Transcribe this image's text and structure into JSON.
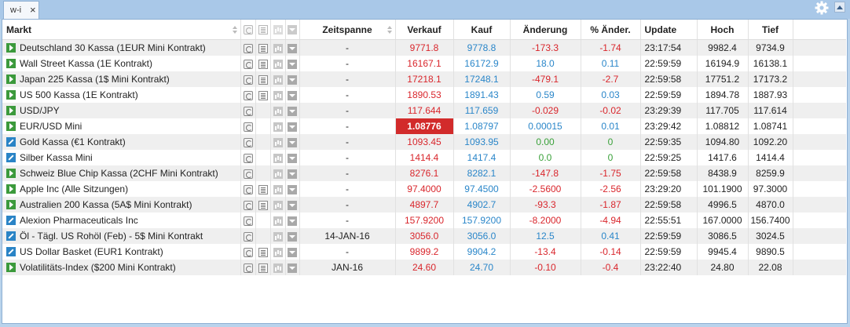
{
  "tab": {
    "label": "w-i",
    "close": "×"
  },
  "headers": {
    "markt": "Markt",
    "zeitspanne": "Zeitspanne",
    "verkauf": "Verkauf",
    "kauf": "Kauf",
    "aenderung": "Änderung",
    "pct": "% Änder.",
    "update": "Update",
    "hoch": "Hoch",
    "tief": "Tief"
  },
  "colors": {
    "sell": "#d9262c",
    "buy": "#2a86c9",
    "up": "#3aa13a",
    "highlight": "#d22b2b"
  },
  "rows": [
    {
      "icon": "play",
      "name": "Deutschland 30 Kassa (1EUR Mini Kontrakt)",
      "doc": true,
      "zeit": "-",
      "sell": "9771.8",
      "buy": "9778.8",
      "chg": "-173.3",
      "pct": "-1.74",
      "dir": "down",
      "update": "23:17:54",
      "high": "9982.4",
      "low": "9734.9"
    },
    {
      "icon": "play",
      "name": "Wall Street Kassa (1E Kontrakt)",
      "doc": true,
      "zeit": "-",
      "sell": "16167.1",
      "buy": "16172.9",
      "chg": "18.0",
      "pct": "0.11",
      "dir": "upblue",
      "update": "22:59:59",
      "high": "16194.9",
      "low": "16138.1"
    },
    {
      "icon": "play",
      "name": "Japan 225 Kassa (1$ Mini Kontrakt)",
      "doc": true,
      "zeit": "-",
      "sell": "17218.1",
      "buy": "17248.1",
      "chg": "-479.1",
      "pct": "-2.7",
      "dir": "down",
      "update": "22:59:58",
      "high": "17751.2",
      "low": "17173.2"
    },
    {
      "icon": "play",
      "name": "US 500 Kassa (1E Kontrakt)",
      "doc": true,
      "zeit": "-",
      "sell": "1890.53",
      "buy": "1891.43",
      "chg": "0.59",
      "pct": "0.03",
      "dir": "upblue",
      "update": "22:59:59",
      "high": "1894.78",
      "low": "1887.93"
    },
    {
      "icon": "play",
      "name": "USD/JPY",
      "doc": false,
      "zeit": "-",
      "sell": "117.644",
      "buy": "117.659",
      "chg": "-0.029",
      "pct": "-0.02",
      "dir": "down",
      "update": "23:29:39",
      "high": "117.705",
      "low": "117.614"
    },
    {
      "icon": "play",
      "name": "EUR/USD Mini",
      "doc": false,
      "zeit": "-",
      "sell": "1.08776",
      "buy": "1.08797",
      "chg": "0.00015",
      "pct": "0.01",
      "dir": "upblue",
      "update": "23:29:42",
      "high": "1.08812",
      "low": "1.08741",
      "hl": true
    },
    {
      "icon": "pencil",
      "name": "Gold Kassa (€1 Kontrakt)",
      "doc": false,
      "zeit": "-",
      "sell": "1093.45",
      "buy": "1093.95",
      "chg": "0.00",
      "pct": "0",
      "dir": "flat",
      "update": "22:59:35",
      "high": "1094.80",
      "low": "1092.20"
    },
    {
      "icon": "pencil",
      "name": "Silber Kassa Mini",
      "doc": false,
      "zeit": "-",
      "sell": "1414.4",
      "buy": "1417.4",
      "chg": "0.0",
      "pct": "0",
      "dir": "flat",
      "update": "22:59:25",
      "high": "1417.6",
      "low": "1414.4"
    },
    {
      "icon": "play",
      "name": "Schweiz Blue Chip Kassa (2CHF Mini Kontrakt)",
      "doc": false,
      "zeit": "-",
      "sell": "8276.1",
      "buy": "8282.1",
      "chg": "-147.8",
      "pct": "-1.75",
      "dir": "down",
      "update": "22:59:58",
      "high": "8438.9",
      "low": "8259.9"
    },
    {
      "icon": "play",
      "name": "Apple Inc (Alle Sitzungen)",
      "doc": true,
      "zeit": "-",
      "sell": "97.4000",
      "buy": "97.4500",
      "chg": "-2.5600",
      "pct": "-2.56",
      "dir": "down",
      "update": "23:29:20",
      "high": "101.1900",
      "low": "97.3000"
    },
    {
      "icon": "play",
      "name": "Australien 200 Kassa (5A$ Mini Kontrakt)",
      "doc": true,
      "zeit": "-",
      "sell": "4897.7",
      "buy": "4902.7",
      "chg": "-93.3",
      "pct": "-1.87",
      "dir": "down",
      "update": "22:59:58",
      "high": "4996.5",
      "low": "4870.0"
    },
    {
      "icon": "pencil",
      "name": "Alexion Pharmaceuticals Inc",
      "doc": false,
      "zeit": "-",
      "sell": "157.9200",
      "buy": "157.9200",
      "chg": "-8.2000",
      "pct": "-4.94",
      "dir": "down",
      "update": "22:55:51",
      "high": "167.0000",
      "low": "156.7400"
    },
    {
      "icon": "pencil",
      "name": "Öl - Tägl. US Rohöl (Feb) - 5$ Mini Kontrakt",
      "doc": false,
      "zeit": "14-JAN-16",
      "sell": "3056.0",
      "buy": "3056.0",
      "chg": "12.5",
      "pct": "0.41",
      "dir": "upblue",
      "update": "22:59:59",
      "high": "3086.5",
      "low": "3024.5"
    },
    {
      "icon": "pencil",
      "name": "US Dollar Basket (EUR1 Kontrakt)",
      "doc": true,
      "zeit": "-",
      "sell": "9899.2",
      "buy": "9904.2",
      "chg": "-13.4",
      "pct": "-0.14",
      "dir": "down",
      "update": "22:59:59",
      "high": "9945.4",
      "low": "9890.5"
    },
    {
      "icon": "play",
      "name": "Volatilitäts-Index ($200 Mini Kontrakt)",
      "doc": true,
      "zeit": "JAN-16",
      "sell": "24.60",
      "buy": "24.70",
      "chg": "-0.10",
      "pct": "-0.4",
      "dir": "down",
      "update": "23:22:40",
      "high": "24.80",
      "low": "22.08"
    }
  ]
}
